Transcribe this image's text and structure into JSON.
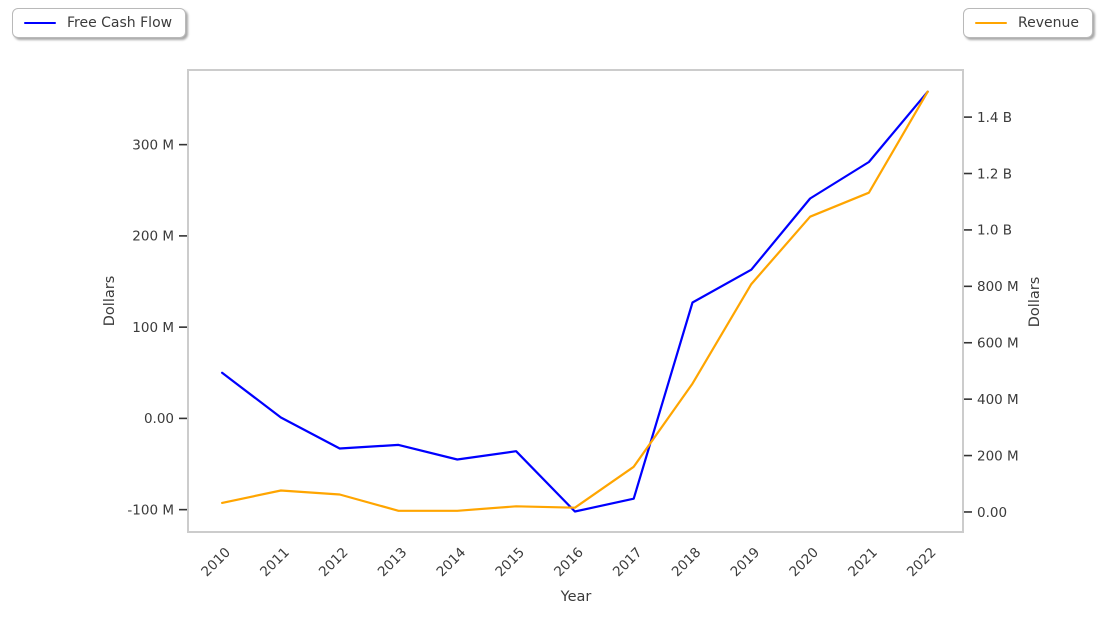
{
  "legend": {
    "note": "two legend boxes, top-left and top-right"
  },
  "chart_data": {
    "type": "line",
    "x": [
      2010,
      2011,
      2012,
      2013,
      2014,
      2015,
      2016,
      2017,
      2018,
      2019,
      2020,
      2021,
      2022
    ],
    "series": [
      {
        "name": "Free Cash Flow",
        "axis": "left",
        "color": "#0000ff",
        "values": [
          50000000,
          1000000,
          -33000000,
          -29000000,
          -45000000,
          -36000000,
          -102000000,
          -88000000,
          127000000,
          163000000,
          241000000,
          281000000,
          358000000
        ]
      },
      {
        "name": "Revenue",
        "axis": "right",
        "color": "#ffa500",
        "values": [
          32000000,
          76000000,
          62000000,
          4000000,
          4000000,
          20000000,
          15000000,
          160000000,
          455000000,
          808000000,
          1047000000,
          1132000000,
          1490000000
        ]
      }
    ],
    "xlabel": "Year",
    "ylabel_left": "Dollars",
    "ylabel_right": "Dollars",
    "xlim": [
      2009.42,
      2022.6
    ],
    "ylim_left": [
      -124500000,
      381800000
    ],
    "ylim_right": [
      -71000000,
      1567000000
    ],
    "xticks": [
      2010,
      2011,
      2012,
      2013,
      2014,
      2015,
      2016,
      2017,
      2018,
      2019,
      2020,
      2021,
      2022
    ],
    "yticks_left": [
      {
        "value": -100000000,
        "label": "-100 M"
      },
      {
        "value": 0,
        "label": "0.00"
      },
      {
        "value": 100000000,
        "label": "100 M"
      },
      {
        "value": 200000000,
        "label": "200 M"
      },
      {
        "value": 300000000,
        "label": "300 M"
      }
    ],
    "yticks_right": [
      {
        "value": 0,
        "label": "0.00"
      },
      {
        "value": 200000000,
        "label": "200 M"
      },
      {
        "value": 400000000,
        "label": "400 M"
      },
      {
        "value": 600000000,
        "label": "600 M"
      },
      {
        "value": 800000000,
        "label": "800 M"
      },
      {
        "value": 1000000000,
        "label": "1.0 B"
      },
      {
        "value": 1200000000,
        "label": "1.2 B"
      },
      {
        "value": 1400000000,
        "label": "1.4 B"
      }
    ],
    "grid": false,
    "legend_position": "outside-top",
    "colors": {
      "border": "#cccccc",
      "tick": "#333333",
      "text": "#3b3b3b"
    }
  }
}
